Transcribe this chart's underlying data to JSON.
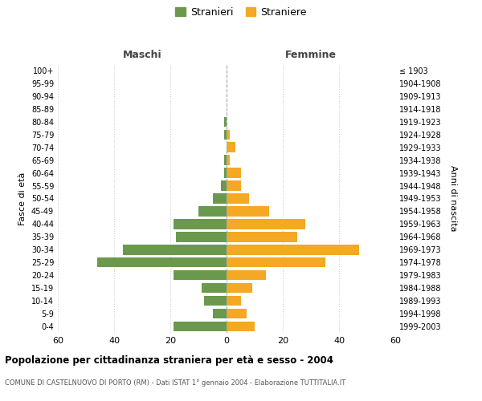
{
  "age_groups": [
    "100+",
    "95-99",
    "90-94",
    "85-89",
    "80-84",
    "75-79",
    "70-74",
    "65-69",
    "60-64",
    "55-59",
    "50-54",
    "45-49",
    "40-44",
    "35-39",
    "30-34",
    "25-29",
    "20-24",
    "15-19",
    "10-14",
    "5-9",
    "0-4"
  ],
  "birth_years": [
    "≤ 1903",
    "1904-1908",
    "1909-1913",
    "1914-1918",
    "1919-1923",
    "1924-1928",
    "1929-1933",
    "1934-1938",
    "1939-1943",
    "1944-1948",
    "1949-1953",
    "1954-1958",
    "1959-1963",
    "1964-1968",
    "1969-1973",
    "1974-1978",
    "1979-1983",
    "1984-1988",
    "1989-1993",
    "1994-1998",
    "1999-2003"
  ],
  "males": [
    0,
    0,
    0,
    0,
    1,
    1,
    0,
    1,
    1,
    2,
    5,
    10,
    19,
    18,
    37,
    46,
    19,
    9,
    8,
    5,
    19
  ],
  "females": [
    0,
    0,
    0,
    0,
    0,
    1,
    3,
    1,
    5,
    5,
    8,
    15,
    28,
    25,
    47,
    35,
    14,
    9,
    5,
    7,
    10
  ],
  "male_color": "#6a994e",
  "female_color": "#f4a823",
  "background_color": "#ffffff",
  "grid_color": "#cccccc",
  "centerline_color": "#aaaaaa",
  "xlim": 60,
  "title": "Popolazione per cittadinanza straniera per età e sesso - 2004",
  "subtitle": "COMUNE DI CASTELNUOVO DI PORTO (RM) - Dati ISTAT 1° gennaio 2004 - Elaborazione TUTTITALIA.IT",
  "ylabel_left": "Fasce di età",
  "ylabel_right": "Anni di nascita",
  "header_left": "Maschi",
  "header_right": "Femmine",
  "legend_male": "Stranieri",
  "legend_female": "Straniere"
}
